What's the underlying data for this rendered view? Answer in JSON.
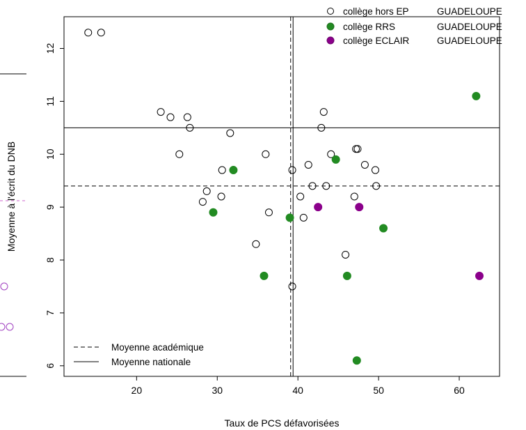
{
  "chart_data": {
    "type": "scatter",
    "xlabel": "Taux de PCS défavorisées",
    "ylabel": "Moyenne à l'écrit du DNB",
    "xlim": [
      11,
      65
    ],
    "ylim": [
      5.8,
      12.6
    ],
    "x_ticks": [
      20,
      30,
      40,
      50,
      60
    ],
    "y_ticks": [
      6,
      7,
      8,
      9,
      10,
      11,
      12
    ],
    "grid": false,
    "colors": {
      "hors_ep": "#000000",
      "rrs": "#228B22",
      "eclair": "#8B008B"
    },
    "series": [
      {
        "name": "collège hors EP",
        "region": "GUADELOUPE",
        "marker": "hollow-circle",
        "color": "#000000",
        "points": [
          [
            14,
            12.3
          ],
          [
            15.6,
            12.3
          ],
          [
            23,
            10.8
          ],
          [
            24.2,
            10.7
          ],
          [
            26.3,
            10.7
          ],
          [
            26.6,
            10.5
          ],
          [
            25.3,
            10.0
          ],
          [
            31.6,
            10.4
          ],
          [
            36,
            10.0
          ],
          [
            30.6,
            9.7
          ],
          [
            28.7,
            9.3
          ],
          [
            28.2,
            9.1
          ],
          [
            30.5,
            9.2
          ],
          [
            36.4,
            8.9
          ],
          [
            34.8,
            8.3
          ],
          [
            39.3,
            9.7
          ],
          [
            39.3,
            7.5
          ],
          [
            40.3,
            9.2
          ],
          [
            40.7,
            8.8
          ],
          [
            41.3,
            9.8
          ],
          [
            41.8,
            9.4
          ],
          [
            42.9,
            10.5
          ],
          [
            43.2,
            10.8
          ],
          [
            43.5,
            9.4
          ],
          [
            44.1,
            10.0
          ],
          [
            45.9,
            8.1
          ],
          [
            47,
            9.2
          ],
          [
            47.2,
            10.1
          ],
          [
            47.4,
            10.1
          ],
          [
            48.3,
            9.8
          ],
          [
            49.6,
            9.7
          ],
          [
            49.7,
            9.4
          ]
        ]
      },
      {
        "name": "collège RRS",
        "region": "GUADELOUPE",
        "marker": "filled-circle",
        "color": "#228B22",
        "points": [
          [
            29.5,
            8.9
          ],
          [
            32,
            9.7
          ],
          [
            35.8,
            7.7
          ],
          [
            39,
            8.8
          ],
          [
            44.7,
            9.9
          ],
          [
            46.1,
            7.7
          ],
          [
            47.3,
            6.1
          ],
          [
            50.6,
            8.6
          ],
          [
            62.1,
            11.1
          ]
        ]
      },
      {
        "name": "collège ECLAIR",
        "region": "GUADELOUPE",
        "marker": "filled-circle",
        "color": "#8B008B",
        "points": [
          [
            42.5,
            9.0
          ],
          [
            47.6,
            9.0
          ],
          [
            62.5,
            7.7
          ]
        ]
      }
    ],
    "reference_lines": [
      {
        "name": "Moyenne académique",
        "style": "dashed",
        "orientation": "vertical",
        "value": 39.1
      },
      {
        "name": "Moyenne nationale",
        "style": "solid",
        "orientation": "vertical",
        "value": 39.4
      },
      {
        "name": "Moyenne nationale",
        "style": "solid",
        "orientation": "horizontal",
        "value": 10.5
      },
      {
        "name": "Moyenne académique",
        "style": "dashed",
        "orientation": "horizontal",
        "value": 9.4
      }
    ],
    "lines_legend": [
      {
        "label": "Moyenne académique",
        "style": "dashed"
      },
      {
        "label": "Moyenne nationale",
        "style": "solid"
      }
    ],
    "legend_position": "top-right"
  }
}
